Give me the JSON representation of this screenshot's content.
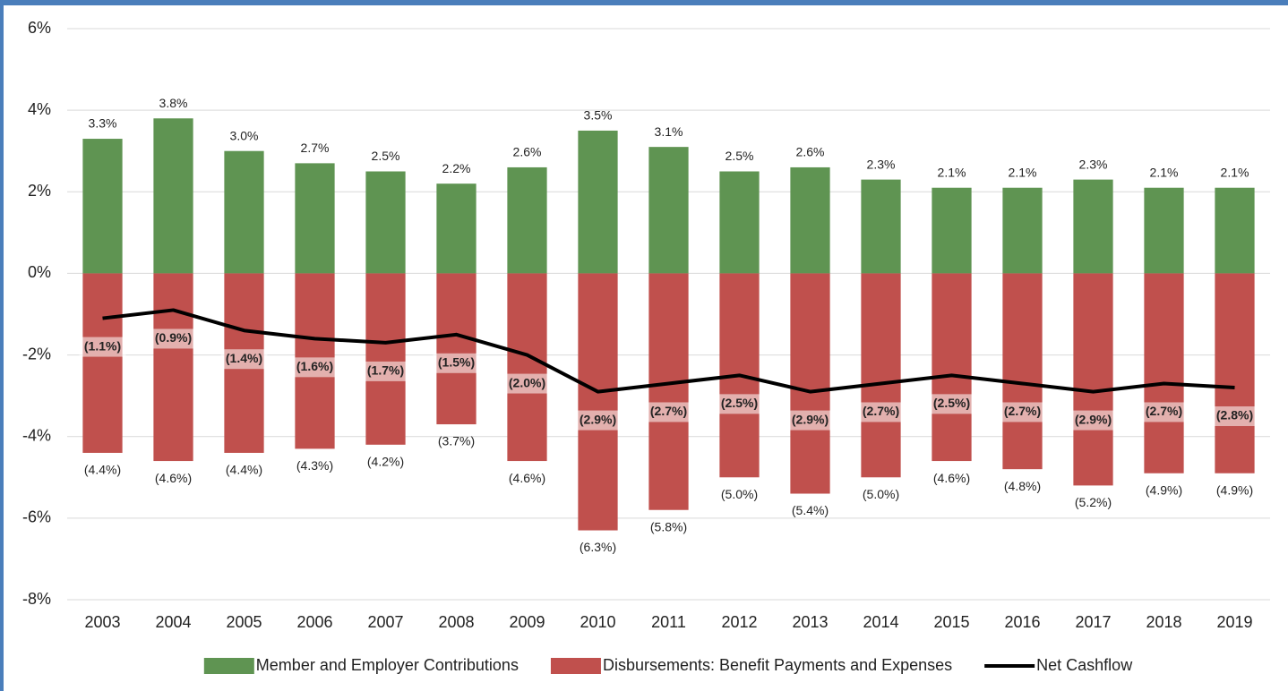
{
  "chart_data": {
    "type": "bar_line",
    "categories": [
      "2003",
      "2004",
      "2005",
      "2006",
      "2007",
      "2008",
      "2009",
      "2010",
      "2011",
      "2012",
      "2013",
      "2014",
      "2015",
      "2016",
      "2017",
      "2018",
      "2019"
    ],
    "series": [
      {
        "name": "Member and Employer Contributions",
        "type": "bar",
        "color": "#5f9452",
        "values": [
          3.3,
          3.8,
          3.0,
          2.7,
          2.5,
          2.2,
          2.6,
          3.5,
          3.1,
          2.5,
          2.6,
          2.3,
          2.1,
          2.1,
          2.3,
          2.1,
          2.1
        ],
        "value_labels": [
          "3.3%",
          "3.8%",
          "3.0%",
          "2.7%",
          "2.5%",
          "2.2%",
          "2.6%",
          "3.5%",
          "3.1%",
          "2.5%",
          "2.6%",
          "2.3%",
          "2.1%",
          "2.1%",
          "2.3%",
          "2.1%",
          "2.1%"
        ]
      },
      {
        "name": "Disbursements: Benefit Payments and Expenses",
        "type": "bar",
        "color": "#c0504d",
        "values": [
          -4.4,
          -4.6,
          -4.4,
          -4.3,
          -4.2,
          -3.7,
          -4.6,
          -6.3,
          -5.8,
          -5.0,
          -5.4,
          -5.0,
          -4.6,
          -4.8,
          -5.2,
          -4.9,
          -4.9
        ],
        "value_labels": [
          "(4.4%)",
          "(4.6%)",
          "(4.4%)",
          "(4.3%)",
          "(4.2%)",
          "(3.7%)",
          "(4.6%)",
          "(6.3%)",
          "(5.8%)",
          "(5.0%)",
          "(5.4%)",
          "(5.0%)",
          "(4.6%)",
          "(4.8%)",
          "(5.2%)",
          "(4.9%)",
          "(4.9%)"
        ]
      },
      {
        "name": "Net Cashflow",
        "type": "line",
        "color": "#000000",
        "values": [
          -1.1,
          -0.9,
          -1.4,
          -1.6,
          -1.7,
          -1.5,
          -2.0,
          -2.9,
          -2.7,
          -2.5,
          -2.9,
          -2.7,
          -2.5,
          -2.7,
          -2.9,
          -2.7,
          -2.8
        ],
        "value_labels": [
          "(1.1%)",
          "(0.9%)",
          "(1.4%)",
          "(1.6%)",
          "(1.7%)",
          "(1.5%)",
          "(2.0%)",
          "(2.9%)",
          "(2.7%)",
          "(2.5%)",
          "(2.9%)",
          "(2.7%)",
          "(2.5%)",
          "(2.7%)",
          "(2.9%)",
          "(2.7%)",
          "(2.8%)"
        ]
      }
    ],
    "ylim": [
      -8,
      6
    ],
    "yticks": [
      {
        "value": -8,
        "label": "-8%"
      },
      {
        "value": -6,
        "label": "-6%"
      },
      {
        "value": -4,
        "label": "-4%"
      },
      {
        "value": -2,
        "label": "-2%"
      },
      {
        "value": 0,
        "label": "0%"
      },
      {
        "value": 2,
        "label": "2%"
      },
      {
        "value": 4,
        "label": "4%"
      },
      {
        "value": 6,
        "label": "6%"
      }
    ],
    "grid": true
  }
}
